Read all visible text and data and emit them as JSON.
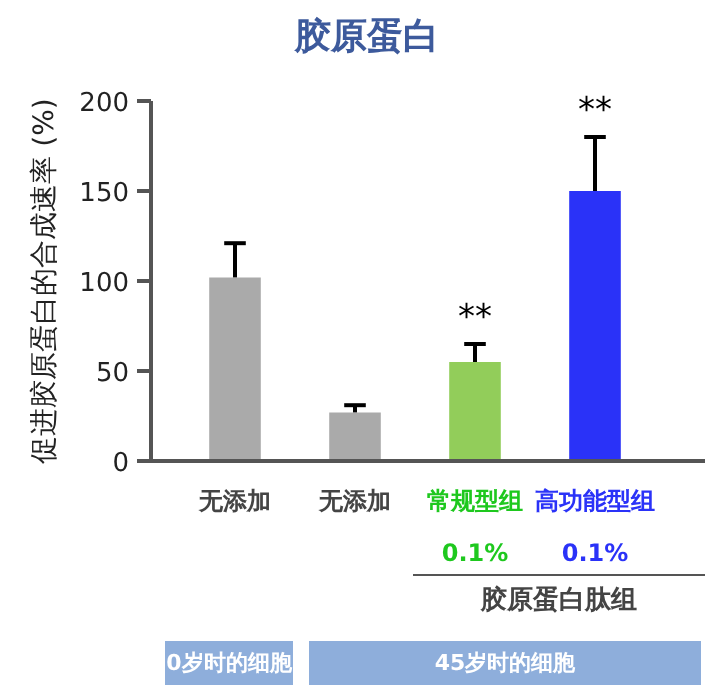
{
  "chart_data": {
    "type": "bar",
    "title": "胶原蛋白",
    "ylabel": "促进胶原蛋白的合成速率 (%)",
    "categories": [
      "无添加",
      "无添加",
      "常规型组",
      "高功能型组"
    ],
    "values": [
      102,
      27,
      55,
      150
    ],
    "colors": [
      "#aaaaaa",
      "#aaaaaa",
      "#92cd5a",
      "#2a32f8"
    ],
    "errors": [
      [
        102,
        121
      ],
      [
        27,
        31
      ],
      [
        55,
        65
      ],
      [
        150,
        180
      ]
    ],
    "ylim": [
      0,
      200
    ],
    "yticks": [
      0,
      50,
      100,
      150,
      200
    ],
    "grid": false,
    "annotations": [
      {
        "text": "**",
        "x": "常规型组",
        "y": 65
      },
      {
        "text": "**",
        "x": "高功能型组",
        "y": 180
      },
      "0.1%",
      "0.1%",
      "胶原蛋白肽组",
      "0岁时的细胞",
      "45岁时的细胞"
    ]
  }
}
